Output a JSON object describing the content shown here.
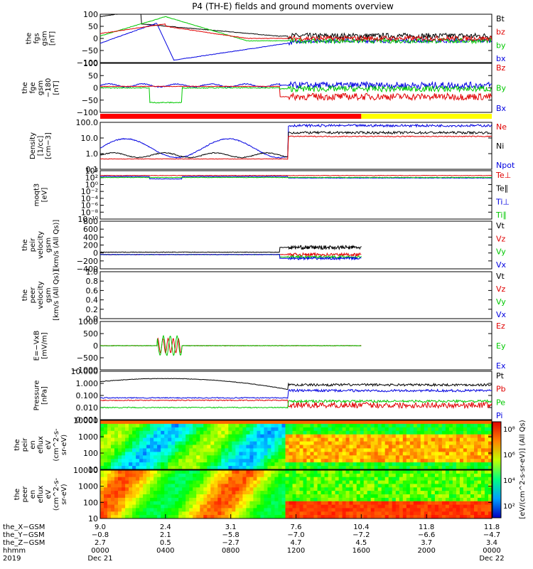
{
  "chart_data": {
    "type": "line",
    "title": "P4 (TH-E) fields and ground moments overview",
    "panels": [
      {
        "ylabel": [
          "the",
          "fgs",
          "gsm",
          "[nT]"
        ],
        "yticks": [
          "100",
          "50",
          "0",
          "−50",
          "−100"
        ],
        "legend": [
          {
            "name": "Bt",
            "color": "#000000"
          },
          {
            "name": "bz",
            "color": "#e00000"
          },
          {
            "name": "by",
            "color": "#00c800"
          },
          {
            "name": "bx",
            "color": "#0000e0"
          }
        ]
      },
      {
        "ylabel": [
          "the",
          "fge",
          "gsm",
          "−180",
          "[nT]"
        ],
        "yticks": [
          "100",
          "50",
          "0",
          "−50",
          "−100"
        ],
        "legend": [
          {
            "name": "Bz",
            "color": "#e00000"
          },
          {
            "name": "By",
            "color": "#00c800"
          },
          {
            "name": "Bx",
            "color": "#0000e0"
          }
        ]
      },
      {
        "ylabel": [
          "Density",
          "[1/cc]",
          "[cm−3]"
        ],
        "yticks": [
          "100.0",
          "10.0",
          "1.0",
          "0.1"
        ],
        "legend": [
          {
            "name": "Ne",
            "color": "#e00000"
          },
          {
            "name": "Ni",
            "color": "#000000"
          },
          {
            "name": "Npot",
            "color": "#0000e0"
          }
        ]
      },
      {
        "ylabel": [
          "moqt3",
          "[eV]"
        ],
        "yticks": [
          "10⁴",
          "10²",
          "10⁰",
          "10⁻²",
          "10⁻⁴",
          "10⁻⁶",
          "10⁻⁸",
          "10⁻¹⁰"
        ],
        "legend": [
          {
            "name": "Te⊥",
            "color": "#e00000"
          },
          {
            "name": "Te∥",
            "color": "#000000"
          },
          {
            "name": "Ti⊥",
            "color": "#0000e0"
          },
          {
            "name": "Ti∥",
            "color": "#00c800"
          }
        ]
      },
      {
        "ylabel": [
          "the",
          "peir",
          "velocity",
          "gsm",
          "[km/s (All Qs)]"
        ],
        "yticks": [
          "800",
          "600",
          "400",
          "200",
          "0",
          "−200",
          "−400"
        ],
        "legend": [
          {
            "name": "Vt",
            "color": "#000000"
          },
          {
            "name": "Vz",
            "color": "#e00000"
          },
          {
            "name": "Vy",
            "color": "#00c800"
          },
          {
            "name": "Vx",
            "color": "#0000e0"
          }
        ]
      },
      {
        "ylabel": [
          "the",
          "peer",
          "velocity",
          "gsm",
          "[km/s (All Qs)]"
        ],
        "yticks": [
          "1.0",
          "0.8",
          "0.6",
          "0.4",
          "0.2",
          "0.0"
        ],
        "legend": [
          {
            "name": "Vt",
            "color": "#000000"
          },
          {
            "name": "Vz",
            "color": "#e00000"
          },
          {
            "name": "Vy",
            "color": "#00c800"
          },
          {
            "name": "Vx",
            "color": "#0000e0"
          }
        ]
      },
      {
        "ylabel": [
          "E=−VxB",
          "[mV/m]"
        ],
        "yticks": [
          "1000",
          "500",
          "0",
          "−500",
          "−1000"
        ],
        "legend": [
          {
            "name": "Ez",
            "color": "#e00000"
          },
          {
            "name": "Ey",
            "color": "#00c800"
          },
          {
            "name": "Ex",
            "color": "#0000e0"
          }
        ]
      },
      {
        "ylabel": [
          "Pressure",
          "[nPa]"
        ],
        "yticks": [
          "10.000",
          "1.000",
          "0.100",
          "0.010",
          "0.001"
        ],
        "legend": [
          {
            "name": "Pt",
            "color": "#000000"
          },
          {
            "name": "Pb",
            "color": "#e00000"
          },
          {
            "name": "Pe",
            "color": "#00c800"
          },
          {
            "name": "Pi",
            "color": "#0000e0"
          }
        ]
      },
      {
        "ylabel": [
          "the",
          "peir",
          "en",
          "eflux",
          "eV",
          "(cm^2-s-",
          "sr-eV)"
        ],
        "yticks": [
          "10000",
          "1000",
          "100",
          "10"
        ],
        "legend": []
      },
      {
        "ylabel": [
          "the",
          "peer",
          "en",
          "eflux",
          "eV",
          "(cm^2-s-",
          "sr-eV)"
        ],
        "yticks": [
          "10000",
          "1000",
          "100",
          "10"
        ],
        "legend": []
      }
    ],
    "colorbar": {
      "label": "[eV/(cm^2-s-sr-eV)] (All Qs)",
      "ticks": [
        "10⁸",
        "10⁶",
        "10⁴",
        "10²"
      ]
    },
    "x_axis": {
      "row_labels": [
        "the_X−GSM",
        "the_Y−GSM",
        "the_Z−GSM",
        "hhmm",
        "2019"
      ],
      "columns": [
        {
          "values": [
            "9.0",
            "−0.8",
            "2.7",
            "0000",
            "Dec 21"
          ]
        },
        {
          "values": [
            "2.4",
            "2.1",
            "0.5",
            "0400",
            ""
          ]
        },
        {
          "values": [
            "3.1",
            "−5.8",
            "−2.7",
            "0800",
            ""
          ]
        },
        {
          "values": [
            "7.6",
            "−7.0",
            "4.7",
            "1200",
            ""
          ]
        },
        {
          "values": [
            "10.4",
            "−7.2",
            "4.5",
            "1600",
            ""
          ]
        },
        {
          "values": [
            "11.8",
            "−6.6",
            "3.7",
            "2000",
            ""
          ]
        },
        {
          "values": [
            "11.8",
            "−4.7",
            "3.4",
            "0000",
            "Dec 22"
          ]
        }
      ]
    },
    "mode_bar": {
      "colors": [
        "#ff0000",
        "#ffff00"
      ],
      "switch_hhmm": "1600"
    }
  }
}
